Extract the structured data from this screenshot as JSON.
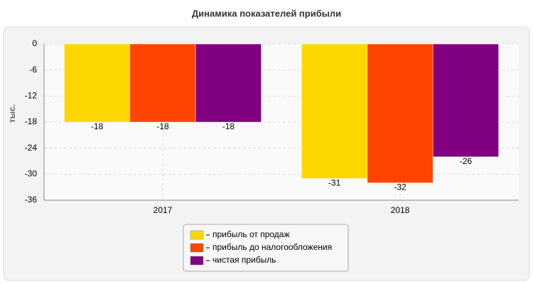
{
  "chart_data": {
    "type": "bar",
    "title": "Динамика показателей прибыли",
    "y_label": "тыс.",
    "categories": [
      "2017",
      "2018"
    ],
    "series": [
      {
        "name": "прибыль от продаж",
        "color": "#FFD700",
        "values": [
          -18,
          -31
        ]
      },
      {
        "name": "прибыль до налогообложения",
        "color": "#FF4500",
        "values": [
          -18,
          -32
        ]
      },
      {
        "name": "чистая прибыль",
        "color": "#800080",
        "values": [
          -18,
          -26
        ]
      }
    ],
    "ylim": [
      -36,
      0
    ],
    "yticks": [
      0,
      -6,
      -12,
      -18,
      -24,
      -30,
      -36
    ],
    "grid": true,
    "legend": "bottom"
  }
}
